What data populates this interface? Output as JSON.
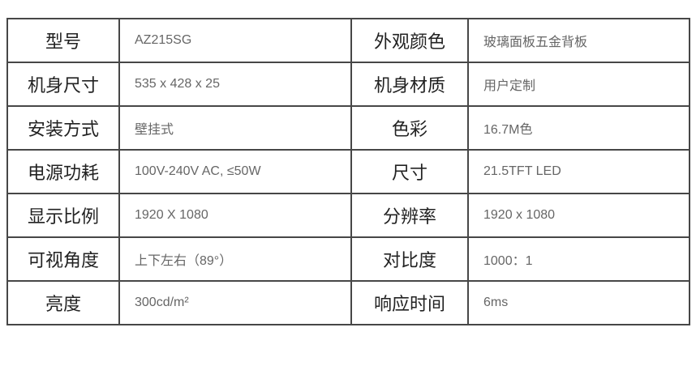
{
  "rows": [
    {
      "k1": "型号",
      "v1": "AZ215SG",
      "k2": "外观颜色",
      "v2": "玻璃面板五金背板"
    },
    {
      "k1": "机身尺寸",
      "v1": "535 x 428 x 25",
      "k2": "机身材质",
      "v2": "用户定制"
    },
    {
      "k1": "安装方式",
      "v1": "壁挂式",
      "k2": "色彩",
      "v2": "16.7M色"
    },
    {
      "k1": "电源功耗",
      "v1": "100V-240V AC, ≤50W",
      "k2": "尺寸",
      "v2": "21.5TFT LED"
    },
    {
      "k1": "显示比例",
      "v1": "1920 X 1080",
      "k2": "分辨率",
      "v2": "1920 x 1080"
    },
    {
      "k1": "可视角度",
      "v1": "上下左右（89°）",
      "k2": "对比度",
      "v2": "1000：1"
    },
    {
      "k1": "亮度",
      "v1": "300cd/m²",
      "k2": "响应时间",
      "v2": "6ms"
    }
  ]
}
